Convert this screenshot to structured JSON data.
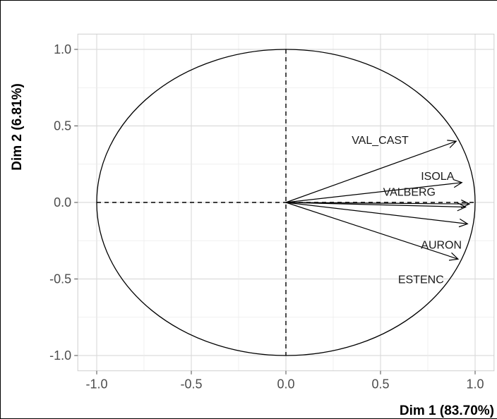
{
  "chart_data": {
    "type": "scatter",
    "subtype": "pca-correlation-circle",
    "xlabel": "Dim 1 (83.70%)",
    "ylabel": "Dim 2 (6.81%)",
    "xlim": [
      -1.1,
      1.1
    ],
    "ylim": [
      -1.1,
      1.1
    ],
    "x_ticks": [
      -1.0,
      -0.5,
      0.0,
      0.5,
      1.0
    ],
    "x_tick_labels": [
      "-1.0",
      "-0.5",
      "0.0",
      "0.5",
      "1.0"
    ],
    "y_ticks": [
      -1.0,
      -0.5,
      0.0,
      0.5,
      1.0
    ],
    "y_tick_labels": [
      "-1.0",
      "-0.5",
      "0.0",
      "0.5",
      "1.0"
    ],
    "grid": true,
    "unit_circle": true,
    "variables": [
      {
        "name": "VAL_CAST",
        "x": 0.9,
        "y": 0.4
      },
      {
        "name": "ISOLA",
        "x": 0.93,
        "y": 0.13
      },
      {
        "name": "VALBERG",
        "x": 0.95,
        "y": -0.03
      },
      {
        "name": "",
        "x": 0.97,
        "y": -0.01
      },
      {
        "name": "AURON",
        "x": 0.96,
        "y": -0.14
      },
      {
        "name": "ESTENC",
        "x": 0.91,
        "y": -0.37
      }
    ],
    "colors": {
      "arrows": "#000000",
      "circle": "#000000",
      "grid": "#e0e0e0"
    }
  }
}
